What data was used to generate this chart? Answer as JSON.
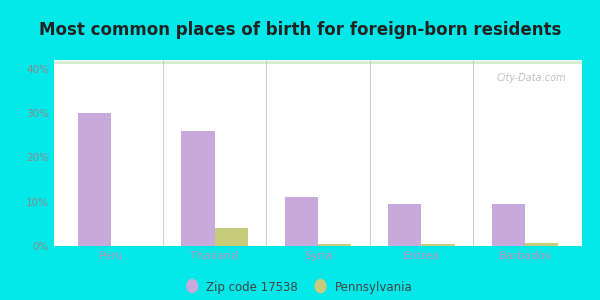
{
  "title": "Most common places of birth for foreign-born residents",
  "categories": [
    "Peru",
    "Thailand",
    "Syria",
    "Eritrea",
    "Barbados"
  ],
  "zip_values": [
    30.0,
    26.0,
    11.0,
    9.5,
    9.5
  ],
  "pa_values": [
    0.0,
    4.0,
    0.5,
    0.5,
    0.7
  ],
  "zip_color": "#c9a8dc",
  "pa_color": "#c8cc7a",
  "zip_label": "Zip code 17538",
  "pa_label": "Pennsylvania",
  "ylim": [
    0,
    42
  ],
  "yticks": [
    0,
    10,
    20,
    30,
    40
  ],
  "ytick_labels": [
    "0%",
    "10%",
    "20%",
    "30%",
    "40%"
  ],
  "outer_bg": "#00e8e8",
  "title_fontsize": 12,
  "title_color": "#222222",
  "xtick_color": "#c090b8",
  "ytick_color": "#888888",
  "watermark": "City-Data.com",
  "bar_width": 0.32,
  "bg_top": "#ffffff",
  "bg_bottom": "#d4eecc",
  "separator_color": "#bbbbbb",
  "grid_color": "#e8e8e8"
}
